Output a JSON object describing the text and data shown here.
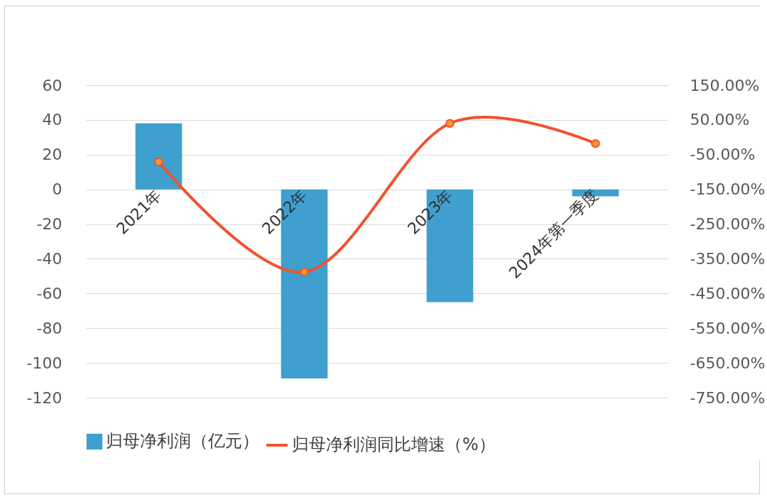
{
  "chart_data": {
    "type": "bar",
    "categories": [
      "2021年",
      "2022年",
      "2023年",
      "2024年第一季度"
    ],
    "series": [
      {
        "name": "归母净利润（亿元）",
        "color": "#3f9fcf",
        "values": [
          38,
          -109,
          -65,
          -4
        ]
      },
      {
        "name": "归母净利润同比增速（%）",
        "type": "line",
        "axis": "y2",
        "color": "#f0522e",
        "values": [
          -71,
          -388,
          40,
          -18
        ]
      }
    ],
    "ylim": [
      -120,
      60
    ],
    "yticks": [
      -120,
      -100,
      -80,
      -60,
      -40,
      -20,
      0,
      20,
      40,
      60
    ],
    "y2lim": [
      -750,
      150
    ],
    "y2ticks": [
      {
        "value": -750,
        "label": "-750.00%"
      },
      {
        "value": -650,
        "label": "-650.00%"
      },
      {
        "value": -550,
        "label": "-550.00%"
      },
      {
        "value": -450,
        "label": "-450.00%"
      },
      {
        "value": -350,
        "label": "-350.00%"
      },
      {
        "value": -250,
        "label": "-250.00%"
      },
      {
        "value": -150,
        "label": "-150.00%"
      },
      {
        "value": -50,
        "label": "-50.00%"
      },
      {
        "value": 50,
        "label": "50.00%"
      },
      {
        "value": 150,
        "label": "150.00%"
      }
    ],
    "grid": "y",
    "legend": "bottom",
    "marker": "circle"
  }
}
